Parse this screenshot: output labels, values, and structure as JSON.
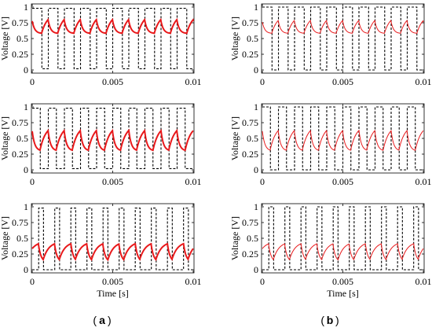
{
  "colors": {
    "pv_voltage": "#e8191b",
    "pwm": "#000000"
  },
  "chart_data": [
    {
      "panel": "a1",
      "type": "line",
      "xlabel": "",
      "ylabel": "Voltage [V]",
      "xlim": [
        0,
        0.01
      ],
      "ylim": [
        0,
        1
      ],
      "xticks": [
        "0",
        "0.005",
        "0.01"
      ],
      "yticks": [
        "0",
        "0.25",
        "0.5",
        "0.75",
        "1"
      ],
      "grid": false,
      "switching_period_s": 0.001,
      "series": [
        {
          "style": "dashed",
          "color": "#000000",
          "kind": "square",
          "low": 0.02,
          "high": 0.98,
          "duty": 0.6,
          "phase_s": 0.0006
        },
        {
          "style": "solid-thick",
          "color": "#e8191b",
          "kind": "ripple",
          "min": 0.58,
          "max": 0.9,
          "start": 0.8
        }
      ]
    },
    {
      "panel": "a2",
      "type": "line",
      "xlabel": "",
      "ylabel": "Voltage [V]",
      "xlim": [
        0,
        0.01
      ],
      "ylim": [
        0,
        1
      ],
      "xticks": [
        "0",
        "0.005",
        "0.01"
      ],
      "yticks": [
        "0",
        "0.25",
        "0.5",
        "0.75",
        "1"
      ],
      "grid": false,
      "switching_period_s": 0.001,
      "series": [
        {
          "style": "dashed",
          "color": "#000000",
          "kind": "square",
          "low": 0.02,
          "high": 0.98,
          "duty": 0.5,
          "phase_s": 0.0005
        },
        {
          "style": "solid-thick",
          "color": "#e8191b",
          "kind": "ripple",
          "min": 0.3,
          "max": 0.72,
          "start": 0.65
        }
      ]
    },
    {
      "panel": "a3",
      "type": "line",
      "xlabel": "Time [s]",
      "ylabel": "Voltage [V]",
      "xlim": [
        0,
        0.01
      ],
      "ylim": [
        0,
        1
      ],
      "xticks": [
        "0",
        "0.005",
        "0.01"
      ],
      "yticks": [
        "0",
        "0.25",
        "0.5",
        "0.75",
        "1"
      ],
      "grid": false,
      "switching_period_s": 0.001,
      "series": [
        {
          "style": "dashed",
          "color": "#000000",
          "kind": "square",
          "low": 0.0,
          "high": 0.98,
          "duty": 0.3,
          "phase_s": 0.0007
        },
        {
          "style": "solid-thick",
          "color": "#e8191b",
          "kind": "ripple",
          "min": 0.12,
          "max": 0.45,
          "start": 0.33
        }
      ]
    },
    {
      "panel": "b1",
      "type": "line",
      "xlabel": "",
      "ylabel": "Voltage [V]",
      "xlim": [
        0,
        0.01
      ],
      "ylim": [
        0,
        1
      ],
      "xticks": [
        "0",
        "0.005",
        "0.01"
      ],
      "yticks": [
        "0",
        "0.25",
        "0.5",
        "0.75",
        "1"
      ],
      "grid": false,
      "switching_period_s": 0.001,
      "series": [
        {
          "style": "dashed",
          "color": "#000000",
          "kind": "square",
          "low": 0.0,
          "high": 1.0,
          "duty": 0.6,
          "phase_s": 0.0006
        },
        {
          "style": "solid-thin",
          "color": "#e8191b",
          "kind": "ripple",
          "min": 0.58,
          "max": 0.88,
          "start": 0.78
        }
      ]
    },
    {
      "panel": "b2",
      "type": "line",
      "xlabel": "",
      "ylabel": "Voltage [V]",
      "xlim": [
        0,
        0.01
      ],
      "ylim": [
        0,
        1
      ],
      "xticks": [
        "0",
        "0.005",
        "0.01"
      ],
      "yticks": [
        "0",
        "0.25",
        "0.5",
        "0.75",
        "1"
      ],
      "grid": false,
      "switching_period_s": 0.001,
      "series": [
        {
          "style": "dashed",
          "color": "#000000",
          "kind": "square",
          "low": 0.0,
          "high": 1.0,
          "duty": 0.5,
          "phase_s": 0.0005
        },
        {
          "style": "solid-thin",
          "color": "#e8191b",
          "kind": "ripple",
          "min": 0.3,
          "max": 0.72,
          "start": 0.65
        }
      ]
    },
    {
      "panel": "b3",
      "type": "line",
      "xlabel": "Time [s]",
      "ylabel": "Voltage [V]",
      "xlim": [
        0,
        0.01
      ],
      "ylim": [
        0,
        1
      ],
      "xticks": [
        "0",
        "0.005",
        "0.01"
      ],
      "yticks": [
        "0",
        "0.25",
        "0.5",
        "0.75",
        "1"
      ],
      "grid": false,
      "switching_period_s": 0.001,
      "series": [
        {
          "style": "dashed",
          "color": "#000000",
          "kind": "square",
          "low": 0.0,
          "high": 1.0,
          "duty": 0.3,
          "phase_s": 0.0007
        },
        {
          "style": "solid-thin",
          "color": "#e8191b",
          "kind": "ripple",
          "min": 0.12,
          "max": 0.45,
          "start": 0.33
        }
      ]
    }
  ],
  "captions": {
    "left": "a",
    "right": "b"
  }
}
